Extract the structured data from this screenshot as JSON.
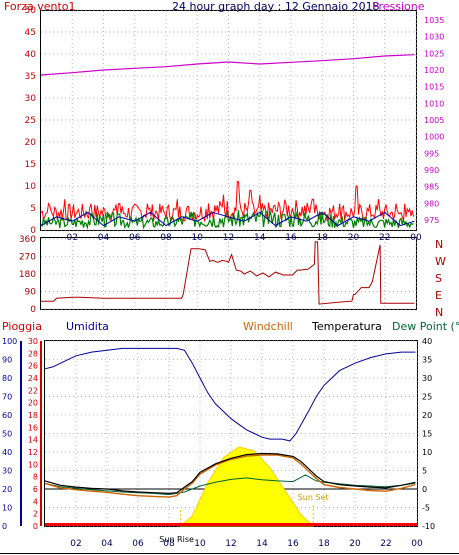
{
  "chart_data": [
    {
      "type": "line",
      "title": "24 hour graph day : 12 Gennaio 2018",
      "left_label": "Forza vento1",
      "right_label": "Pressione",
      "x_ticks": [
        "02",
        "04",
        "06",
        "08",
        "10",
        "12",
        "14",
        "16",
        "18",
        "20",
        "22",
        "00"
      ],
      "y_left_ticks": [
        "0",
        "5",
        "10",
        "15",
        "20",
        "25",
        "30",
        "35",
        "40",
        "45",
        "50"
      ],
      "y_left_range": [
        0,
        50
      ],
      "y_right_ticks": [
        "975",
        "980",
        "985",
        "990",
        "995",
        "1000",
        "1005",
        "1010",
        "1015",
        "1020",
        "1025",
        "1030",
        "1035"
      ],
      "y_right_range": [
        972,
        1038
      ],
      "grid": true,
      "colors": {
        "gust": "#ff0000",
        "wind_avg": "#008000",
        "wind_speed": "#0000aa",
        "pressure": "#cc00cc"
      },
      "pressure": {
        "x": [
          0,
          2,
          4,
          6,
          8,
          10,
          12,
          14,
          16,
          18,
          20,
          22,
          23.9
        ],
        "y": [
          1018.5,
          1019.2,
          1020.0,
          1020.5,
          1021.0,
          1021.8,
          1022.4,
          1021.8,
          1022.3,
          1022.8,
          1023.4,
          1024.2,
          1024.6
        ]
      },
      "gust_typical": {
        "x": [
          0,
          2,
          4,
          6,
          8,
          10,
          12,
          14,
          16,
          18,
          20,
          22,
          23.9
        ],
        "y": [
          5,
          5,
          5,
          5,
          5,
          5,
          6,
          5,
          6,
          5,
          5,
          5,
          4
        ]
      },
      "gust_peaks": {
        "x": [
          0.5,
          1.5,
          3.2,
          5.0,
          6.8,
          8.7,
          10.7,
          11.7,
          12.6,
          13.4,
          14.0,
          15.7,
          17.4,
          19.1,
          20.2,
          21.6,
          22.7,
          23.3
        ],
        "y": [
          6,
          7,
          6,
          6,
          6,
          7,
          6,
          8,
          11,
          9,
          8,
          6,
          7,
          6,
          10,
          7,
          6,
          6
        ]
      },
      "wind_avg": {
        "x": [
          0,
          2,
          4,
          6,
          8,
          10,
          12,
          14,
          16,
          18,
          20,
          22,
          23.9
        ],
        "y": [
          2,
          2,
          3,
          2,
          2,
          3,
          3,
          3,
          3,
          3,
          2,
          2,
          2
        ]
      },
      "wind_speed": {
        "x": [
          0,
          1,
          2,
          3,
          4,
          5,
          6,
          7,
          8,
          9,
          10,
          11,
          12,
          13,
          14,
          15,
          16,
          17,
          18,
          19,
          20,
          21,
          22,
          23,
          23.9
        ],
        "y": [
          1,
          3,
          2,
          4,
          1,
          3,
          2,
          4,
          1,
          3,
          2,
          4,
          3,
          2,
          4,
          1,
          3,
          2,
          4,
          1,
          3,
          2,
          4,
          1,
          2
        ]
      }
    },
    {
      "type": "line",
      "y_ticks": [
        "0",
        "90",
        "180",
        "270",
        "360"
      ],
      "y_range": [
        0,
        360
      ],
      "direction_labels": [
        "N",
        "W",
        "S",
        "E",
        "N"
      ],
      "x_ticks": [
        "02",
        "04",
        "06",
        "08",
        "10",
        "12",
        "14",
        "16",
        "18",
        "20",
        "22",
        "00"
      ],
      "color": "#aa0000",
      "direction": {
        "x": [
          0,
          0.8,
          1.0,
          2.0,
          2.5,
          4.0,
          6.0,
          8.0,
          9.0,
          9.1,
          9.6,
          10.1,
          10.5,
          10.8,
          11.0,
          11.3,
          11.6,
          11.9,
          12.0,
          12.2,
          12.5,
          12.8,
          13.0,
          13.4,
          13.8,
          14.2,
          14.6,
          15.0,
          15.5,
          15.9,
          16.1,
          16.4,
          16.6,
          17.1,
          17.5,
          17.55,
          17.7,
          17.8,
          19.0,
          19.9,
          20.0,
          20.1,
          20.5,
          20.6,
          21.0,
          21.2,
          21.7,
          21.75,
          22.0,
          22.1,
          23.9
        ],
        "y": [
          40,
          40,
          55,
          60,
          60,
          55,
          55,
          55,
          55,
          75,
          310,
          310,
          305,
          245,
          250,
          240,
          250,
          245,
          240,
          280,
          200,
          195,
          180,
          195,
          170,
          185,
          165,
          190,
          175,
          175,
          175,
          200,
          200,
          205,
          230,
          345,
          345,
          25,
          35,
          40,
          75,
          75,
          110,
          110,
          110,
          140,
          330,
          30,
          30,
          30,
          30
        ]
      }
    },
    {
      "type": "line",
      "labels": {
        "rain": "Pioggia",
        "humidity": "Umidita",
        "windchill": "Windchill",
        "temperature": "Temperatura",
        "dewpoint": "Dew Point (°C"
      },
      "y_humidity_ticks": [
        "0",
        "10",
        "20",
        "30",
        "40",
        "50",
        "60",
        "70",
        "80",
        "90",
        "100"
      ],
      "y_humidity_range": [
        0,
        100
      ],
      "y_rain_ticks": [
        "0",
        "2",
        "4",
        "6",
        "8",
        "10",
        "12",
        "14",
        "16",
        "18",
        "20",
        "22",
        "24",
        "26",
        "28",
        "30"
      ],
      "y_rain_range": [
        0,
        30
      ],
      "y_temp_ticks": [
        "-10",
        "-5",
        "0",
        "5",
        "10",
        "15",
        "20",
        "25",
        "30",
        "35",
        "40"
      ],
      "y_temp_range": [
        -10,
        40
      ],
      "x_ticks": [
        "02",
        "04",
        "06",
        "08",
        "10",
        "12",
        "14",
        "16",
        "18",
        "20",
        "22",
        "00"
      ],
      "annotations": {
        "sunrise": "Sun Rise",
        "sunset": "Sun Set"
      },
      "sunrise_hour": 8.75,
      "sunset_hour": 17.3,
      "colors": {
        "humidity": "#000099",
        "temperature": "#000000",
        "windchill": "#cc6600",
        "dewpoint": "#006633",
        "rain": "#ff0000",
        "sun": "#ffff00",
        "sun_outline": "#ffcc00"
      },
      "humidity": {
        "x": [
          0,
          0.5,
          1,
          2,
          3,
          4,
          5,
          6,
          7,
          8,
          8.5,
          9,
          9.5,
          10,
          10.5,
          11,
          11.5,
          12,
          12.5,
          13,
          13.5,
          14,
          14.5,
          15,
          15.3,
          15.8,
          16.2,
          16.6,
          17,
          17.5,
          18,
          18.5,
          19,
          20,
          21,
          22,
          23,
          23.9
        ],
        "y": [
          85,
          86,
          88,
          92,
          94,
          95,
          96,
          96,
          96,
          96,
          96,
          95,
          88,
          80,
          72,
          66,
          62,
          58,
          55,
          52,
          50,
          48,
          47,
          47,
          47,
          46,
          50,
          56,
          62,
          70,
          76,
          80,
          84,
          88,
          91,
          93,
          94,
          94
        ]
      },
      "temperature": {
        "x": [
          0,
          1,
          2,
          3,
          4,
          5,
          6,
          7,
          8,
          8.5,
          9,
          9.5,
          10,
          11,
          12,
          13,
          14,
          15,
          16,
          16.5,
          17,
          17.5,
          18,
          19,
          20,
          21,
          22,
          23,
          23.9
        ],
        "y": [
          2.2,
          1.0,
          0.5,
          0.2,
          0.0,
          -0.5,
          -0.8,
          -1.0,
          -1.2,
          -1.0,
          0.5,
          2.0,
          4.5,
          6.8,
          8.3,
          9.3,
          9.6,
          9.5,
          8.8,
          7.5,
          5.5,
          3.5,
          2.0,
          1.2,
          0.8,
          0.5,
          0.3,
          1.0,
          1.8
        ]
      },
      "windchill": {
        "x": [
          0,
          1,
          2,
          3,
          4,
          5,
          6,
          7,
          8,
          8.5,
          9,
          9.5,
          10,
          11,
          12,
          13,
          14,
          15,
          16,
          16.5,
          17,
          17.5,
          18,
          19,
          20,
          21,
          22,
          23,
          23.9
        ],
        "y": [
          1.5,
          0.3,
          -0.2,
          -0.6,
          -0.9,
          -1.4,
          -1.8,
          -2.0,
          -2.2,
          -1.8,
          0.0,
          1.6,
          4.0,
          6.5,
          8.0,
          8.9,
          9.2,
          9.2,
          8.4,
          6.8,
          4.8,
          2.8,
          1.2,
          0.4,
          0.0,
          -0.4,
          -0.6,
          0.2,
          1.2
        ]
      },
      "dewpoint": {
        "x": [
          0,
          1,
          2,
          3,
          4,
          5,
          6,
          7,
          8,
          9,
          10,
          11,
          12,
          13,
          14,
          15,
          16,
          16.8,
          17.5,
          18,
          19,
          20,
          21,
          22,
          23,
          23.9
        ],
        "y": [
          1.5,
          0.6,
          0.2,
          -0.2,
          -0.5,
          -0.8,
          -1.0,
          -1.2,
          -1.5,
          -0.8,
          0.8,
          1.8,
          2.6,
          3.0,
          2.5,
          2.2,
          2.0,
          3.8,
          2.2,
          1.8,
          1.4,
          1.0,
          0.8,
          0.6,
          1.0,
          1.6
        ]
      },
      "solar": {
        "x": [
          8.75,
          9.5,
          10.5,
          11.5,
          12.5,
          13.5,
          14.5,
          15.5,
          16.5,
          17.3
        ],
        "y": [
          0,
          12,
          52,
          82,
          95,
          90,
          70,
          42,
          14,
          0
        ]
      },
      "rain_total": 0
    }
  ]
}
